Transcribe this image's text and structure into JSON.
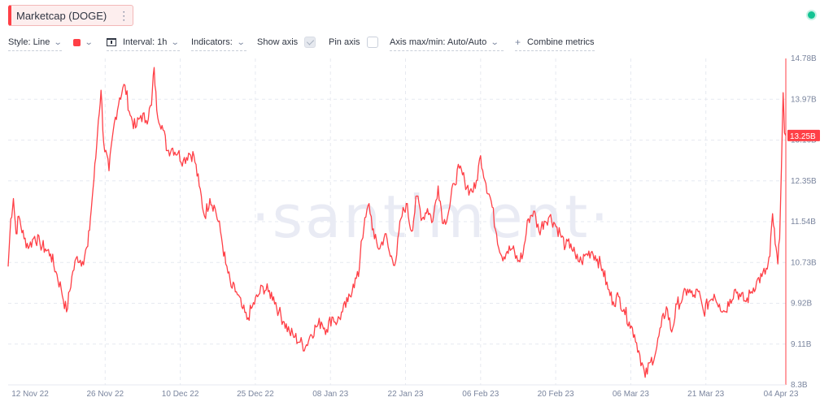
{
  "metric": {
    "label": "Marketcap (DOGE)",
    "menu_icon": "⋮"
  },
  "toolbar": {
    "style_label": "Style: Line",
    "color": "#ff3f46",
    "interval_label": "Interval: 1h",
    "indicators_label": "Indicators:",
    "show_axis_label": "Show axis",
    "show_axis_checked": true,
    "pin_axis_label": "Pin axis",
    "pin_axis_checked": false,
    "axis_label": "Axis max/min: Auto/Auto",
    "combine_label": "Combine metrics",
    "combine_icon": "+"
  },
  "status": {
    "color": "#14c393"
  },
  "watermark": "·santiment·",
  "chart_data": {
    "type": "line",
    "title": "Marketcap (DOGE)",
    "y_ticks": [
      "14.78B",
      "13.97B",
      "13.16B",
      "12.35B",
      "11.54B",
      "10.73B",
      "9.92B",
      "9.11B",
      "8.3B"
    ],
    "y_range": [
      8.3,
      14.78
    ],
    "y_unit": "B",
    "x_ticks": [
      "12 Nov 22",
      "26 Nov 22",
      "10 Dec 22",
      "25 Dec 22",
      "08 Jan 23",
      "22 Jan 23",
      "06 Feb 23",
      "20 Feb 23",
      "06 Mar 23",
      "21 Mar 23",
      "04 Apr 23"
    ],
    "x_range": [
      "2022-11-09",
      "2023-04-04"
    ],
    "grid": true,
    "last_value": 13.25,
    "last_value_label": "13.25B",
    "series": [
      {
        "color": "#ff3f46",
        "points": [
          [
            "2022-11-09",
            10.65
          ],
          [
            "2022-11-09T12",
            11.6
          ],
          [
            "2022-11-10",
            12.0
          ],
          [
            "2022-11-10T12",
            11.3
          ],
          [
            "2022-11-11",
            11.65
          ],
          [
            "2022-11-12",
            11.2
          ],
          [
            "2022-11-13",
            11.05
          ],
          [
            "2022-11-14",
            11.25
          ],
          [
            "2022-11-15",
            11.1
          ],
          [
            "2022-11-16",
            11.0
          ],
          [
            "2022-11-17",
            10.9
          ],
          [
            "2022-11-18",
            10.55
          ],
          [
            "2022-11-19",
            10.2
          ],
          [
            "2022-11-20",
            9.75
          ],
          [
            "2022-11-21",
            10.45
          ],
          [
            "2022-11-22",
            10.85
          ],
          [
            "2022-11-23",
            10.75
          ],
          [
            "2022-11-24",
            11.05
          ],
          [
            "2022-11-24T12",
            11.6
          ],
          [
            "2022-11-25",
            12.2
          ],
          [
            "2022-11-25T12",
            12.8
          ],
          [
            "2022-11-26",
            13.55
          ],
          [
            "2022-11-26T12",
            14.15
          ],
          [
            "2022-11-27",
            13.1
          ],
          [
            "2022-11-28",
            12.55
          ],
          [
            "2022-11-29",
            13.5
          ],
          [
            "2022-11-30",
            14.0
          ],
          [
            "2022-12-01",
            14.25
          ],
          [
            "2022-12-02",
            13.65
          ],
          [
            "2022-12-03",
            13.4
          ],
          [
            "2022-12-04",
            13.65
          ],
          [
            "2022-12-05",
            13.55
          ],
          [
            "2022-12-06",
            13.85
          ],
          [
            "2022-12-06T12",
            14.6
          ],
          [
            "2022-12-07",
            13.75
          ],
          [
            "2022-12-08",
            13.45
          ],
          [
            "2022-12-09",
            12.95
          ],
          [
            "2022-12-10",
            13.0
          ],
          [
            "2022-12-11",
            12.9
          ],
          [
            "2022-12-12",
            12.75
          ],
          [
            "2022-12-13",
            12.9
          ],
          [
            "2022-12-14",
            12.85
          ],
          [
            "2022-12-15",
            12.25
          ],
          [
            "2022-12-16",
            11.65
          ],
          [
            "2022-12-17",
            12.0
          ],
          [
            "2022-12-18",
            11.8
          ],
          [
            "2022-12-19",
            11.35
          ],
          [
            "2022-12-20",
            10.7
          ],
          [
            "2022-12-21",
            10.25
          ],
          [
            "2022-12-22",
            10.15
          ],
          [
            "2022-12-23",
            9.85
          ],
          [
            "2022-12-24",
            9.6
          ],
          [
            "2022-12-25",
            9.85
          ],
          [
            "2022-12-26",
            10.05
          ],
          [
            "2022-12-27",
            10.25
          ],
          [
            "2022-12-28",
            10.15
          ],
          [
            "2022-12-29",
            10.05
          ],
          [
            "2022-12-30",
            9.75
          ],
          [
            "2022-12-31",
            9.55
          ],
          [
            "2023-01-01",
            9.35
          ],
          [
            "2023-01-02",
            9.25
          ],
          [
            "2023-01-03",
            9.15
          ],
          [
            "2023-01-04",
            9.05
          ],
          [
            "2023-01-05",
            9.3
          ],
          [
            "2023-01-06",
            9.45
          ],
          [
            "2023-01-07",
            9.55
          ],
          [
            "2023-01-08",
            9.4
          ],
          [
            "2023-01-09",
            9.65
          ],
          [
            "2023-01-10",
            9.55
          ],
          [
            "2023-01-11",
            9.75
          ],
          [
            "2023-01-12",
            9.95
          ],
          [
            "2023-01-13",
            10.3
          ],
          [
            "2023-01-14",
            10.45
          ],
          [
            "2023-01-14T12",
            11.15
          ],
          [
            "2023-01-15",
            11.4
          ],
          [
            "2023-01-16",
            11.9
          ],
          [
            "2023-01-17",
            11.2
          ],
          [
            "2023-01-18",
            11.0
          ],
          [
            "2023-01-19",
            11.3
          ],
          [
            "2023-01-20",
            10.85
          ],
          [
            "2023-01-21",
            10.75
          ],
          [
            "2023-01-22",
            11.6
          ],
          [
            "2023-01-23",
            11.9
          ],
          [
            "2023-01-24",
            11.35
          ],
          [
            "2023-01-25",
            12.05
          ],
          [
            "2023-01-26",
            11.6
          ],
          [
            "2023-01-27",
            11.8
          ],
          [
            "2023-01-28",
            11.55
          ],
          [
            "2023-01-29",
            12.25
          ],
          [
            "2023-01-30",
            11.5
          ],
          [
            "2023-01-31",
            11.75
          ],
          [
            "2023-02-01",
            12.3
          ],
          [
            "2023-02-02",
            12.6
          ],
          [
            "2023-02-03",
            12.35
          ],
          [
            "2023-02-04",
            12.15
          ],
          [
            "2023-02-05",
            12.2
          ],
          [
            "2023-02-06",
            12.85
          ],
          [
            "2023-02-07",
            12.3
          ],
          [
            "2023-02-08",
            11.95
          ],
          [
            "2023-02-09",
            11.3
          ],
          [
            "2023-02-10",
            10.85
          ],
          [
            "2023-02-11",
            10.95
          ],
          [
            "2023-02-12",
            11.0
          ],
          [
            "2023-02-13",
            10.75
          ],
          [
            "2023-02-14",
            10.9
          ],
          [
            "2023-02-15",
            11.6
          ],
          [
            "2023-02-16",
            11.75
          ],
          [
            "2023-02-17",
            11.35
          ],
          [
            "2023-02-18",
            11.55
          ],
          [
            "2023-02-19",
            11.65
          ],
          [
            "2023-02-20",
            11.5
          ],
          [
            "2023-02-21",
            11.3
          ],
          [
            "2023-02-22",
            11.05
          ],
          [
            "2023-02-23",
            11.1
          ],
          [
            "2023-02-24",
            10.8
          ],
          [
            "2023-02-25",
            10.75
          ],
          [
            "2023-02-26",
            10.9
          ],
          [
            "2023-02-27",
            10.95
          ],
          [
            "2023-02-28",
            10.8
          ],
          [
            "2023-03-01",
            10.6
          ],
          [
            "2023-03-02",
            10.2
          ],
          [
            "2023-03-03",
            9.95
          ],
          [
            "2023-03-04",
            10.05
          ],
          [
            "2023-03-05",
            9.8
          ],
          [
            "2023-03-06",
            9.55
          ],
          [
            "2023-03-07",
            9.3
          ],
          [
            "2023-03-08",
            8.9
          ],
          [
            "2023-03-09",
            8.45
          ],
          [
            "2023-03-10",
            8.75
          ],
          [
            "2023-03-11",
            8.95
          ],
          [
            "2023-03-12",
            9.45
          ],
          [
            "2023-03-13",
            9.85
          ],
          [
            "2023-03-14",
            9.35
          ],
          [
            "2023-03-15",
            9.9
          ],
          [
            "2023-03-16",
            10.0
          ],
          [
            "2023-03-17",
            10.2
          ],
          [
            "2023-03-18",
            10.05
          ],
          [
            "2023-03-19",
            10.15
          ],
          [
            "2023-03-20",
            9.75
          ],
          [
            "2023-03-21",
            9.95
          ],
          [
            "2023-03-22",
            10.1
          ],
          [
            "2023-03-23",
            9.9
          ],
          [
            "2023-03-24",
            9.75
          ],
          [
            "2023-03-25",
            10.0
          ],
          [
            "2023-03-26",
            10.2
          ],
          [
            "2023-03-27",
            10.05
          ],
          [
            "2023-03-28",
            9.95
          ],
          [
            "2023-03-29",
            10.15
          ],
          [
            "2023-03-30",
            10.35
          ],
          [
            "2023-03-31",
            10.45
          ],
          [
            "2023-04-01",
            10.6
          ],
          [
            "2023-04-01T12",
            10.85
          ],
          [
            "2023-04-02",
            11.7
          ],
          [
            "2023-04-02T12",
            11.1
          ],
          [
            "2023-04-03",
            10.7
          ],
          [
            "2023-04-03T08",
            11.2
          ],
          [
            "2023-04-03T16",
            12.6
          ],
          [
            "2023-04-04",
            14.1
          ],
          [
            "2023-04-04T06",
            13.3
          ],
          [
            "2023-04-04T12",
            13.25
          ]
        ]
      }
    ]
  }
}
